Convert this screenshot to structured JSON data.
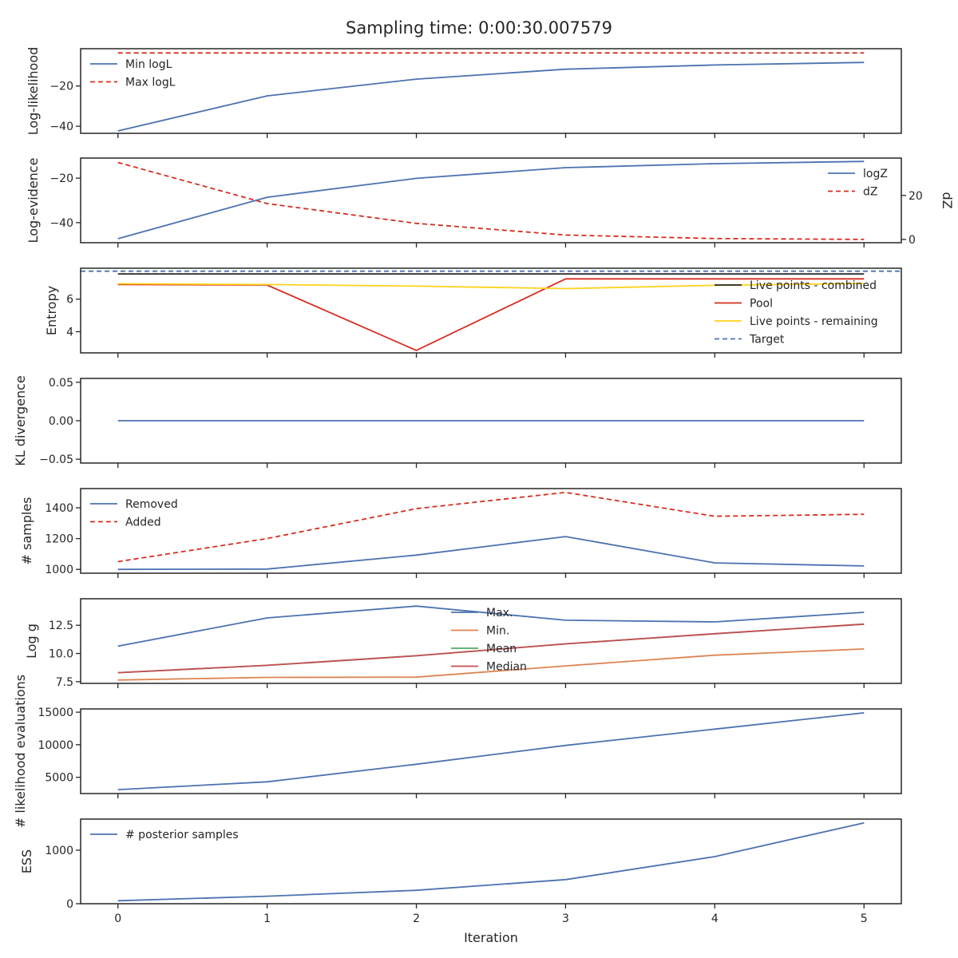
{
  "colors": {
    "blue": "#4c72b0",
    "red": "#d62d20",
    "orange": "#dd8452",
    "green": "#55a868",
    "brick": "#c44e52",
    "gold": "#ffd31a",
    "dark": "#262626"
  },
  "chart_data": {
    "title": "Sampling time: 0:00:30.007579",
    "xlabel": "Iteration",
    "x": [
      0,
      1,
      2,
      3,
      4,
      5
    ],
    "xlim": [
      -0.25,
      5.25
    ],
    "xticks": [
      0,
      1,
      2,
      3,
      4,
      5
    ],
    "panels": [
      {
        "type": "line",
        "ylabel": "Log-likelihood",
        "ylim": [
          -43.5,
          -1.5
        ],
        "yticks": [
          -40,
          -20
        ],
        "legend": "upper-left",
        "series": [
          {
            "name": "Min logL",
            "color": "blue",
            "dash": false,
            "values": [
              -42.3,
              -24.9,
              -16.6,
              -11.7,
              -9.6,
              -8.3
            ]
          },
          {
            "name": "Max logL",
            "color": "red",
            "dash": true,
            "values": [
              -3.6,
              -3.6,
              -3.6,
              -3.6,
              -3.6,
              -3.6
            ]
          }
        ]
      },
      {
        "type": "line",
        "ylabel": "Log-evidence",
        "ylabel2": "dZ",
        "ylim": [
          -49,
          -11
        ],
        "ylim2": [
          -1.5,
          37
        ],
        "yticks": [
          -40,
          -20
        ],
        "yticks2": [
          0,
          20
        ],
        "legend": "upper-right",
        "series": [
          {
            "name": "logZ",
            "color": "blue",
            "dash": false,
            "axis": "left",
            "values": [
              -47.2,
              -28.6,
              -20.1,
              -15.3,
              -13.5,
              -12.5
            ]
          },
          {
            "name": "dZ",
            "color": "red",
            "dash": true,
            "axis": "right",
            "values": [
              35,
              16.3,
              7.3,
              2.0,
              0.4,
              0.0
            ]
          }
        ]
      },
      {
        "type": "line",
        "ylabel": "Entropy",
        "ylim": [
          2.7,
          7.9
        ],
        "yticks": [
          4,
          6
        ],
        "legend": "lower-right",
        "series": [
          {
            "name": "Live points - combined",
            "color": "dark",
            "dash": false,
            "values": [
              7.55,
              7.55,
              7.55,
              7.55,
              7.55,
              7.55
            ]
          },
          {
            "name": "Pool",
            "color": "red",
            "dash": false,
            "values": [
              6.9,
              6.87,
              2.85,
              7.25,
              7.25,
              7.25
            ]
          },
          {
            "name": "Live points - remaining",
            "color": "gold",
            "dash": false,
            "values": [
              6.95,
              6.9,
              6.8,
              6.65,
              6.85,
              6.97
            ]
          },
          {
            "name": "Target",
            "color": "blue",
            "dash": true,
            "hline": true,
            "values": [
              7.72,
              7.72,
              7.72,
              7.72,
              7.72,
              7.72
            ]
          }
        ]
      },
      {
        "type": "line",
        "ylabel": "KL divergence",
        "ylim": [
          -0.055,
          0.055
        ],
        "yticks": [
          -0.05,
          0.0,
          0.05
        ],
        "ytick_labels": [
          "-0.05",
          "0.00",
          "0.05"
        ],
        "series": [
          {
            "color": "blue",
            "dash": false,
            "values": [
              0,
              0,
              0,
              0,
              0,
              0
            ]
          }
        ]
      },
      {
        "type": "line",
        "ylabel": "# samples",
        "ylim": [
          975,
          1525
        ],
        "yticks": [
          1000,
          1200,
          1400
        ],
        "legend": "upper-left",
        "series": [
          {
            "name": "Removed",
            "color": "blue",
            "dash": false,
            "values": [
              1000,
              1002,
              1093,
              1213,
              1042,
              1022
            ]
          },
          {
            "name": "Added",
            "color": "red",
            "dash": true,
            "values": [
              1050,
              1200,
              1395,
              1500,
              1345,
              1358
            ]
          }
        ]
      },
      {
        "type": "line",
        "ylabel": "Log g",
        "ylim": [
          7.35,
          14.85
        ],
        "yticks": [
          7.5,
          10.0,
          12.5
        ],
        "ytick_labels": [
          "7.5",
          "10.0",
          "12.5"
        ],
        "legend": "upper-center",
        "series": [
          {
            "name": "Max.",
            "color": "blue",
            "dash": false,
            "values": [
              10.65,
              13.15,
              14.2,
              12.95,
              12.8,
              13.65
            ]
          },
          {
            "name": "Min.",
            "color": "orange",
            "dash": false,
            "values": [
              7.65,
              7.88,
              7.9,
              8.9,
              9.85,
              10.4
            ]
          },
          {
            "name": "Mean",
            "color": "green",
            "dash": false,
            "values": [
              8.3,
              8.95,
              9.8,
              10.85,
              11.75,
              12.6
            ]
          },
          {
            "name": "Median",
            "color": "brick",
            "dash": false,
            "values": [
              8.3,
              8.95,
              9.8,
              10.85,
              11.75,
              12.6
            ]
          }
        ]
      },
      {
        "type": "line",
        "ylabel": "# likelihood evaluations",
        "ylim": [
          2500,
          15500
        ],
        "yticks": [
          5000,
          10000,
          15000
        ],
        "series": [
          {
            "color": "blue",
            "dash": false,
            "values": [
              3100,
              4300,
              7000,
              9900,
              12400,
              14900
            ]
          }
        ]
      },
      {
        "type": "line",
        "ylabel": "ESS",
        "ylim": [
          0,
          1580
        ],
        "yticks": [
          0,
          1000
        ],
        "legend": "upper-left",
        "series": [
          {
            "name": "# posterior samples",
            "color": "blue",
            "dash": false,
            "values": [
              55,
              140,
              250,
              450,
              880,
              1510
            ]
          }
        ]
      }
    ]
  }
}
